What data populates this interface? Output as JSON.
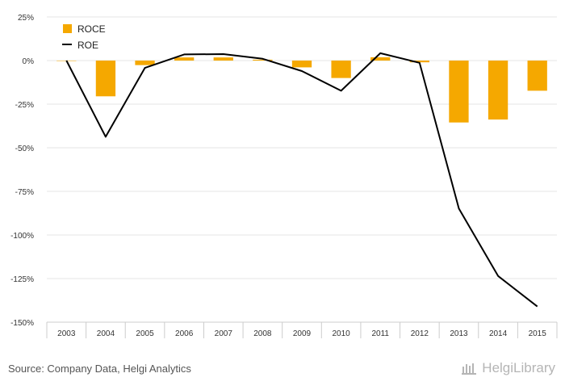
{
  "chart_data": {
    "type": "bar",
    "categories": [
      "2003",
      "2004",
      "2005",
      "2006",
      "2007",
      "2008",
      "2009",
      "2010",
      "2011",
      "2012",
      "2013",
      "2014",
      "2015"
    ],
    "series": [
      {
        "name": "ROCE",
        "kind": "bar",
        "color": "#f5a800",
        "values": [
          0.0,
          -20.5,
          -2.6,
          1.8,
          1.8,
          0.5,
          -3.9,
          -10.0,
          1.9,
          -1.0,
          -35.5,
          -33.8,
          -17.3
        ]
      },
      {
        "name": "ROE",
        "kind": "line",
        "color": "#000000",
        "values": [
          0.0,
          -43.7,
          -4.2,
          3.5,
          3.7,
          1.0,
          -6.0,
          -17.3,
          4.2,
          -1.3,
          -84.8,
          -123.5,
          -141.0
        ]
      }
    ],
    "yticks": [
      "25%",
      "0%",
      "-25%",
      "-50%",
      "-75%",
      "-100%",
      "-125%",
      "-150%"
    ],
    "ylim": [
      -150,
      25
    ],
    "grid": true,
    "legend": "top-left",
    "title": "",
    "xlabel": "",
    "ylabel": ""
  },
  "footer": {
    "source": "Source: Company Data, Helgi Analytics",
    "brand": "HelgiLibrary"
  }
}
